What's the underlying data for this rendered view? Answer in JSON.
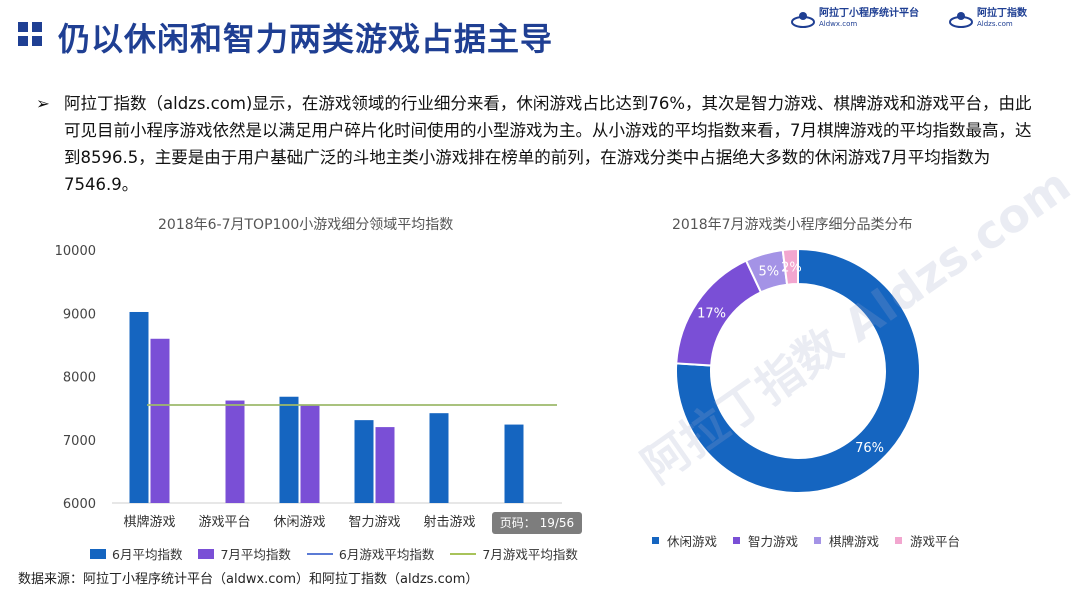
{
  "header": {
    "title": "仍以休闲和智力两类游戏占据主导",
    "brands": [
      {
        "name": "阿拉丁小程序统计平台",
        "url": "Aldwx.com"
      },
      {
        "name": "阿拉丁指数",
        "url": "Aldzs.com"
      }
    ]
  },
  "intro": {
    "bullet": "➢",
    "text": "阿拉丁指数（aldzs.com)显示，在游戏领域的行业细分来看，休闲游戏占比达到76%，其次是智力游戏、棋牌游戏和游戏平台，由此可见目前小程序游戏依然是以满足用户碎片化时间使用的小型游戏为主。从小游戏的平均指数来看，7月棋牌游戏的平均指数最高，达到8596.5，主要是由于用户基础广泛的斗地主类小游戏排在榜单的前列，在游戏分类中占据绝大多数的休闲游戏7月平均指数为7546.9。"
  },
  "chart_data": [
    {
      "type": "bar",
      "title": "2018年6-7月TOP100小游戏细分领域平均指数",
      "categories": [
        "棋牌游戏",
        "游戏平台",
        "休闲游戏",
        "智力游戏",
        "射击游戏",
        ""
      ],
      "series": [
        {
          "name": "6月平均指数",
          "type": "bar",
          "color": "#1565c0",
          "values": [
            9020,
            null,
            7680,
            7310,
            7420,
            7240
          ]
        },
        {
          "name": "7月平均指数",
          "type": "bar",
          "color": "#7a4fd6",
          "values": [
            8596.5,
            7620,
            7546.9,
            7200,
            null,
            null
          ]
        },
        {
          "name": "6月游戏平均指数",
          "type": "line",
          "color": "#5b7bd5",
          "value": 7550
        },
        {
          "name": "7月游戏平均指数",
          "type": "line",
          "color": "#a8c35a",
          "value": 7550
        }
      ],
      "ylim": [
        6000,
        10000
      ],
      "yticks": [
        6000,
        7000,
        8000,
        9000,
        10000
      ],
      "grid": false,
      "legend": "bottom"
    },
    {
      "type": "pie",
      "variant": "donut",
      "title": "2018年7月游戏类小程序细分品类分布",
      "slices": [
        {
          "label": "休闲游戏",
          "value": 76,
          "display": "76%",
          "color": "#1565c0"
        },
        {
          "label": "智力游戏",
          "value": 17,
          "display": "17%",
          "color": "#7a4fd6"
        },
        {
          "label": "棋牌游戏",
          "value": 5,
          "display": "5%",
          "color": "#a493e6"
        },
        {
          "label": "游戏平台",
          "value": 2,
          "display": "2%",
          "color": "#f2a6cf"
        }
      ],
      "legend": "bottom"
    }
  ],
  "pager": "页码： 19/56",
  "source": "数据来源：阿拉丁小程序统计平台（aldwx.com）和阿拉丁指数（aldzs.com）",
  "watermark": "阿拉丁指数 Aldzs.com"
}
